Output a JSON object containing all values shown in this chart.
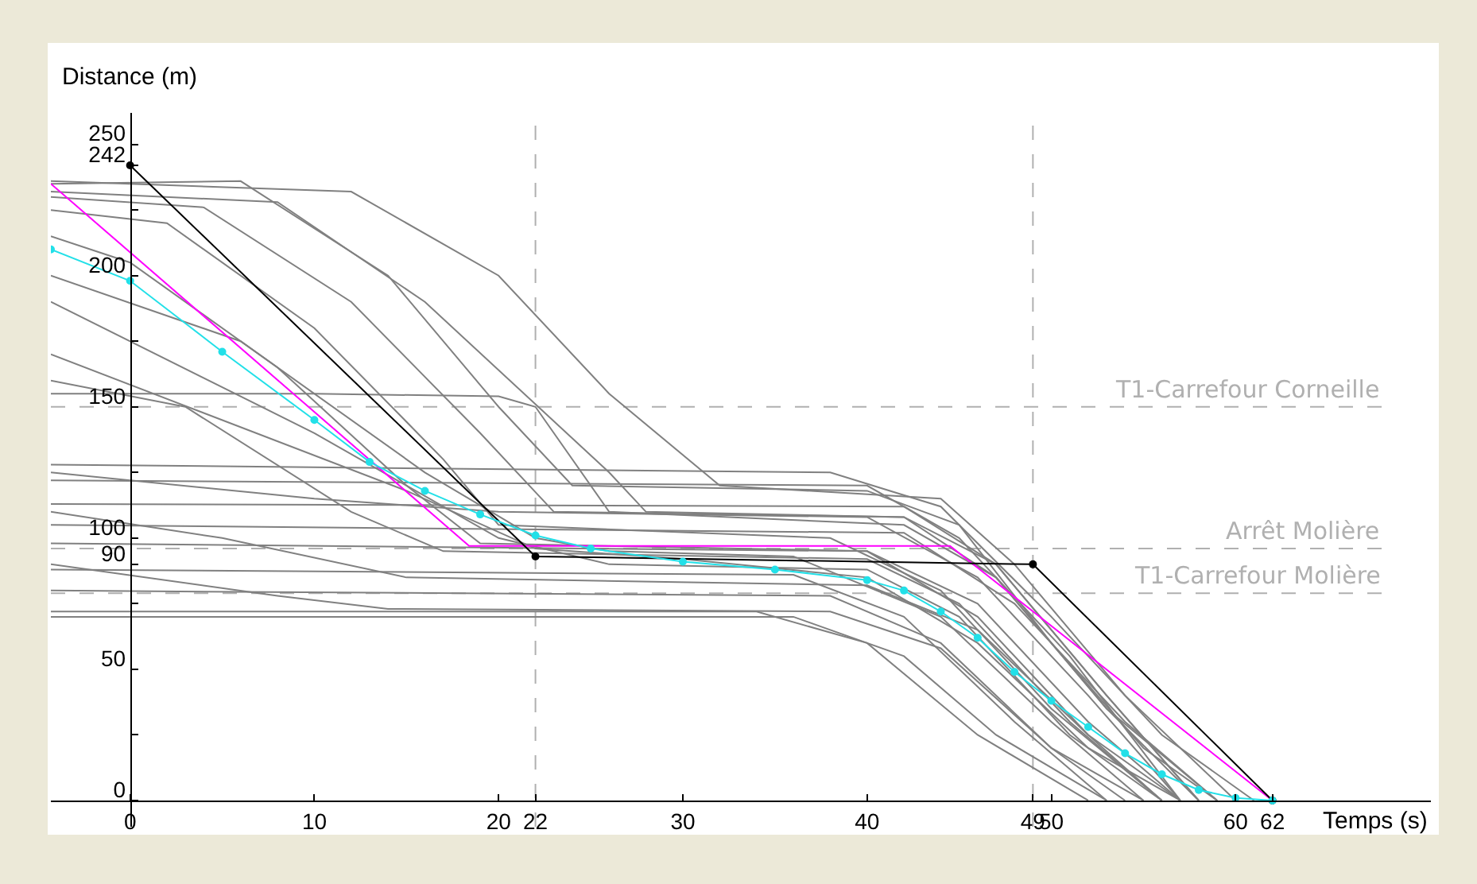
{
  "chart_data": {
    "type": "line",
    "xlabel": "Temps (s)",
    "ylabel": "Distance (m)",
    "xlim": [
      -4.3,
      70.6
    ],
    "ylim": [
      -10,
      262
    ],
    "xticks": [
      0,
      10,
      20,
      22,
      30,
      40,
      49,
      50,
      60,
      62
    ],
    "yticks": [
      0,
      {
        "value": 25,
        "label": null
      },
      50,
      {
        "value": 75,
        "label": null
      },
      90,
      100,
      {
        "value": 125,
        "label": null
      },
      150,
      {
        "value": 175,
        "label": null
      },
      200,
      {
        "value": 225,
        "label": null
      },
      242,
      250
    ],
    "grid": false,
    "line_style": "solid",
    "series": [
      {
        "color": "#808080",
        "x": [
          -4.3,
          6,
          14,
          20,
          24,
          40,
          45,
          50,
          55,
          59
        ],
        "values": [
          235,
          236,
          200,
          150,
          120,
          118,
          105,
          60,
          20,
          0
        ]
      },
      {
        "color": "#808080",
        "x": [
          -4.3,
          4,
          12,
          19,
          23,
          42,
          47,
          53,
          58
        ],
        "values": [
          230,
          226,
          190,
          140,
          110,
          108,
          90,
          40,
          0
        ]
      },
      {
        "color": "#808080",
        "x": [
          -4.3,
          2,
          10,
          17,
          20,
          38,
          44,
          50,
          56
        ],
        "values": [
          225,
          220,
          180,
          130,
          105,
          100,
          80,
          35,
          0
        ]
      },
      {
        "color": "#808080",
        "x": [
          -4.3,
          0,
          8,
          15,
          19,
          40,
          46,
          52,
          57
        ],
        "values": [
          215,
          205,
          165,
          120,
          98,
          95,
          75,
          30,
          0
        ]
      },
      {
        "color": "#808080",
        "x": [
          -4.3,
          6,
          16,
          22,
          26,
          36,
          44,
          50,
          55
        ],
        "values": [
          200,
          175,
          125,
          100,
          95,
          93,
          70,
          30,
          0
        ]
      },
      {
        "color": "#808080",
        "x": [
          -4.3,
          10,
          20,
          26,
          40,
          45,
          51,
          56
        ],
        "values": [
          190,
          140,
          100,
          90,
          88,
          70,
          25,
          0
        ]
      },
      {
        "color": "#808080",
        "x": [
          -4.3,
          15,
          22,
          30,
          40,
          46,
          52,
          57
        ],
        "values": [
          170,
          118,
          96,
          92,
          85,
          60,
          20,
          0
        ]
      },
      {
        "color": "#808080",
        "x": [
          -4.3,
          12,
          20,
          26,
          32,
          44,
          48,
          54,
          60
        ],
        "values": [
          236,
          232,
          200,
          155,
          120,
          115,
          90,
          40,
          0
        ]
      },
      {
        "color": "#808080",
        "x": [
          -4.3,
          8,
          16,
          26,
          28,
          42,
          47,
          53,
          59
        ],
        "values": [
          232,
          228,
          190,
          125,
          110,
          108,
          85,
          35,
          0
        ]
      },
      {
        "color": "#808080",
        "x": [
          -4.3,
          38,
          44,
          50,
          56,
          61
        ],
        "values": [
          128,
          125,
          112,
          70,
          25,
          0
        ]
      },
      {
        "color": "#808080",
        "x": [
          -4.3,
          40,
          45,
          51,
          57
        ],
        "values": [
          122,
          120,
          100,
          55,
          0
        ]
      },
      {
        "color": "#808080",
        "x": [
          -4.3,
          42,
          47,
          53,
          58
        ],
        "values": [
          113,
          112,
          90,
          40,
          0
        ]
      },
      {
        "color": "#808080",
        "x": [
          -4.3,
          10,
          20,
          40,
          46,
          52,
          57
        ],
        "values": [
          125,
          115,
          110,
          108,
          85,
          40,
          0
        ]
      },
      {
        "color": "#808080",
        "x": [
          -4.3,
          42,
          48,
          54,
          59
        ],
        "values": [
          105,
          102,
          75,
          30,
          0
        ]
      },
      {
        "color": "#808080",
        "x": [
          -4.3,
          40,
          46,
          52,
          56
        ],
        "values": [
          98,
          95,
          70,
          25,
          0
        ]
      },
      {
        "color": "#808080",
        "x": [
          -4.3,
          36,
          42,
          48,
          53
        ],
        "values": [
          88,
          86,
          70,
          30,
          0
        ]
      },
      {
        "color": "#808080",
        "x": [
          -4.3,
          38,
          44,
          50,
          54
        ],
        "values": [
          80,
          78,
          60,
          20,
          0
        ]
      },
      {
        "color": "#808080",
        "x": [
          -4.3,
          34,
          40,
          46,
          52
        ],
        "values": [
          72,
          72,
          60,
          25,
          0
        ]
      },
      {
        "color": "#808080",
        "x": [
          -4.3,
          36,
          42,
          47,
          53
        ],
        "values": [
          70,
          70,
          55,
          25,
          0
        ]
      },
      {
        "color": "#808080",
        "x": [
          -4.3,
          5,
          15,
          40,
          46,
          52,
          57
        ],
        "values": [
          110,
          100,
          85,
          82,
          65,
          25,
          0
        ]
      },
      {
        "color": "#808080",
        "x": [
          -4.3,
          10,
          20,
          22,
          26,
          42,
          47,
          53,
          58
        ],
        "values": [
          155,
          155,
          154,
          150,
          110,
          105,
          85,
          35,
          0
        ]
      },
      {
        "color": "#808080",
        "x": [
          -4.3,
          3,
          12,
          17,
          40,
          45,
          51,
          56
        ],
        "values": [
          160,
          150,
          110,
          95,
          92,
          75,
          30,
          0
        ]
      },
      {
        "color": "#808080",
        "x": [
          -4.3,
          8,
          14,
          38,
          44,
          50,
          55
        ],
        "values": [
          90,
          78,
          73,
          72,
          58,
          20,
          0
        ]
      },
      {
        "color": "#ff00ff",
        "x": [
          -4.3,
          18.4,
          44.5,
          62
        ],
        "values": [
          235,
          97,
          97,
          0
        ]
      },
      {
        "color": "#000000",
        "marker": "circle",
        "x": [
          0,
          22,
          49,
          62
        ],
        "values": [
          242,
          93,
          90,
          0
        ]
      },
      {
        "color": "#22e0e8",
        "marker": "circle",
        "x": [
          -4.3,
          0,
          5,
          10,
          13,
          16,
          19,
          22,
          25,
          30,
          35,
          40,
          42,
          44,
          46,
          48,
          50,
          52,
          54,
          56,
          58,
          60,
          62
        ],
        "values": [
          210,
          198,
          171,
          145,
          129,
          118,
          109,
          101,
          96,
          91,
          88,
          84,
          80,
          72,
          62,
          49,
          38,
          28,
          18,
          10,
          4,
          1,
          0
        ]
      }
    ],
    "ref_lines": [
      {
        "axis": "y",
        "value": 150,
        "label": "T1-Carrefour Corneille",
        "color": "#b0b0b0",
        "line_style": "dashed"
      },
      {
        "axis": "y",
        "value": 96,
        "label": "Arrêt Molière",
        "color": "#b0b0b0",
        "line_style": "dashed"
      },
      {
        "axis": "y",
        "value": 79,
        "label": "T1-Carrefour Molière",
        "color": "#b0b0b0",
        "line_style": "dashed"
      },
      {
        "axis": "x",
        "value": 22,
        "label": null,
        "color": "#b0b0b0",
        "line_style": "dashed"
      },
      {
        "axis": "x",
        "value": 49,
        "label": null,
        "color": "#b0b0b0",
        "line_style": "dashed"
      }
    ]
  }
}
